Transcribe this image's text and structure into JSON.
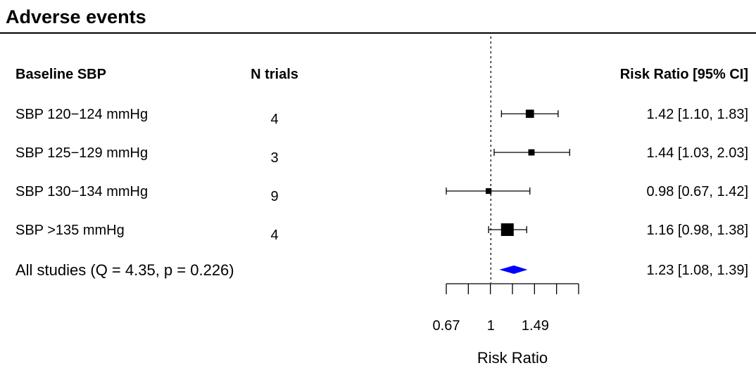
{
  "title": "Adverse events",
  "chart_data": {
    "type": "forest",
    "columns": {
      "label": "Baseline SBP",
      "count": "N trials",
      "estimate": "Risk Ratio [95% CI]"
    },
    "rows": [
      {
        "label": "SBP 120−124 mmHg",
        "n": "4",
        "rr": 1.42,
        "lo": 1.1,
        "hi": 1.83,
        "text": "1.42 [1.10, 1.83]",
        "weight": 0.55
      },
      {
        "label": "SBP 125−129 mmHg",
        "n": "3",
        "rr": 1.44,
        "lo": 1.03,
        "hi": 2.03,
        "text": "1.44 [1.03, 2.03]",
        "weight": 0.35
      },
      {
        "label": "SBP 130−134 mmHg",
        "n": "9",
        "rr": 0.98,
        "lo": 0.67,
        "hi": 1.42,
        "text": "0.98 [0.67, 1.42]",
        "weight": 0.3
      },
      {
        "label": "SBP >135 mmHg",
        "n": "4",
        "rr": 1.16,
        "lo": 0.98,
        "hi": 1.38,
        "text": "1.16 [0.98, 1.38]",
        "weight": 1.0
      }
    ],
    "summary": {
      "label": "All studies (Q = 4.35, p = 0.226)",
      "rr": 1.23,
      "lo": 1.08,
      "hi": 1.39,
      "text": "1.23 [1.08, 1.39]"
    },
    "reference_line": 1,
    "scale": "log",
    "xlim": [
      0.67,
      2.2
    ],
    "xticks_labeled": [
      "0.67",
      "1",
      "1.49"
    ],
    "xlabel": "Risk Ratio",
    "summary_color": "#0000ff",
    "point_color": "#000000"
  }
}
